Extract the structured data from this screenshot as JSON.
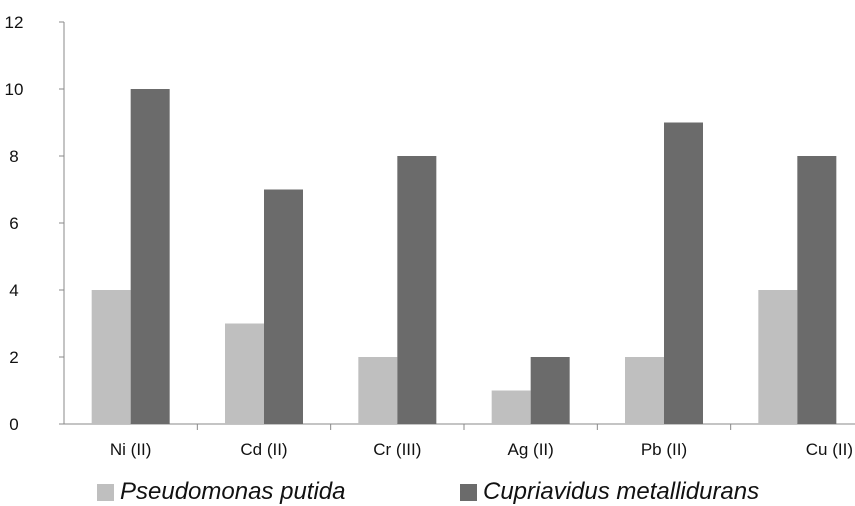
{
  "chart_data": {
    "type": "bar",
    "categories": [
      "Ni (II)",
      "Cd (II)",
      "Cr (III)",
      "Ag (II)",
      "Pb (II)",
      "Cu (II)"
    ],
    "series": [
      {
        "name": "Pseudomonas putida",
        "values": [
          4,
          3,
          2,
          1,
          2,
          4
        ],
        "color": "#bfbfbf"
      },
      {
        "name": "Cupriavidus metallidurans",
        "values": [
          10,
          7,
          8,
          2,
          9,
          8
        ],
        "color": "#6b6b6b"
      }
    ],
    "yticks": [
      "0",
      "2",
      "4",
      "6",
      "8",
      "10",
      "12"
    ],
    "ylim": [
      0,
      12
    ],
    "grid": false,
    "legend_position": "bottom",
    "title": "",
    "xlabel": "",
    "ylabel": ""
  }
}
